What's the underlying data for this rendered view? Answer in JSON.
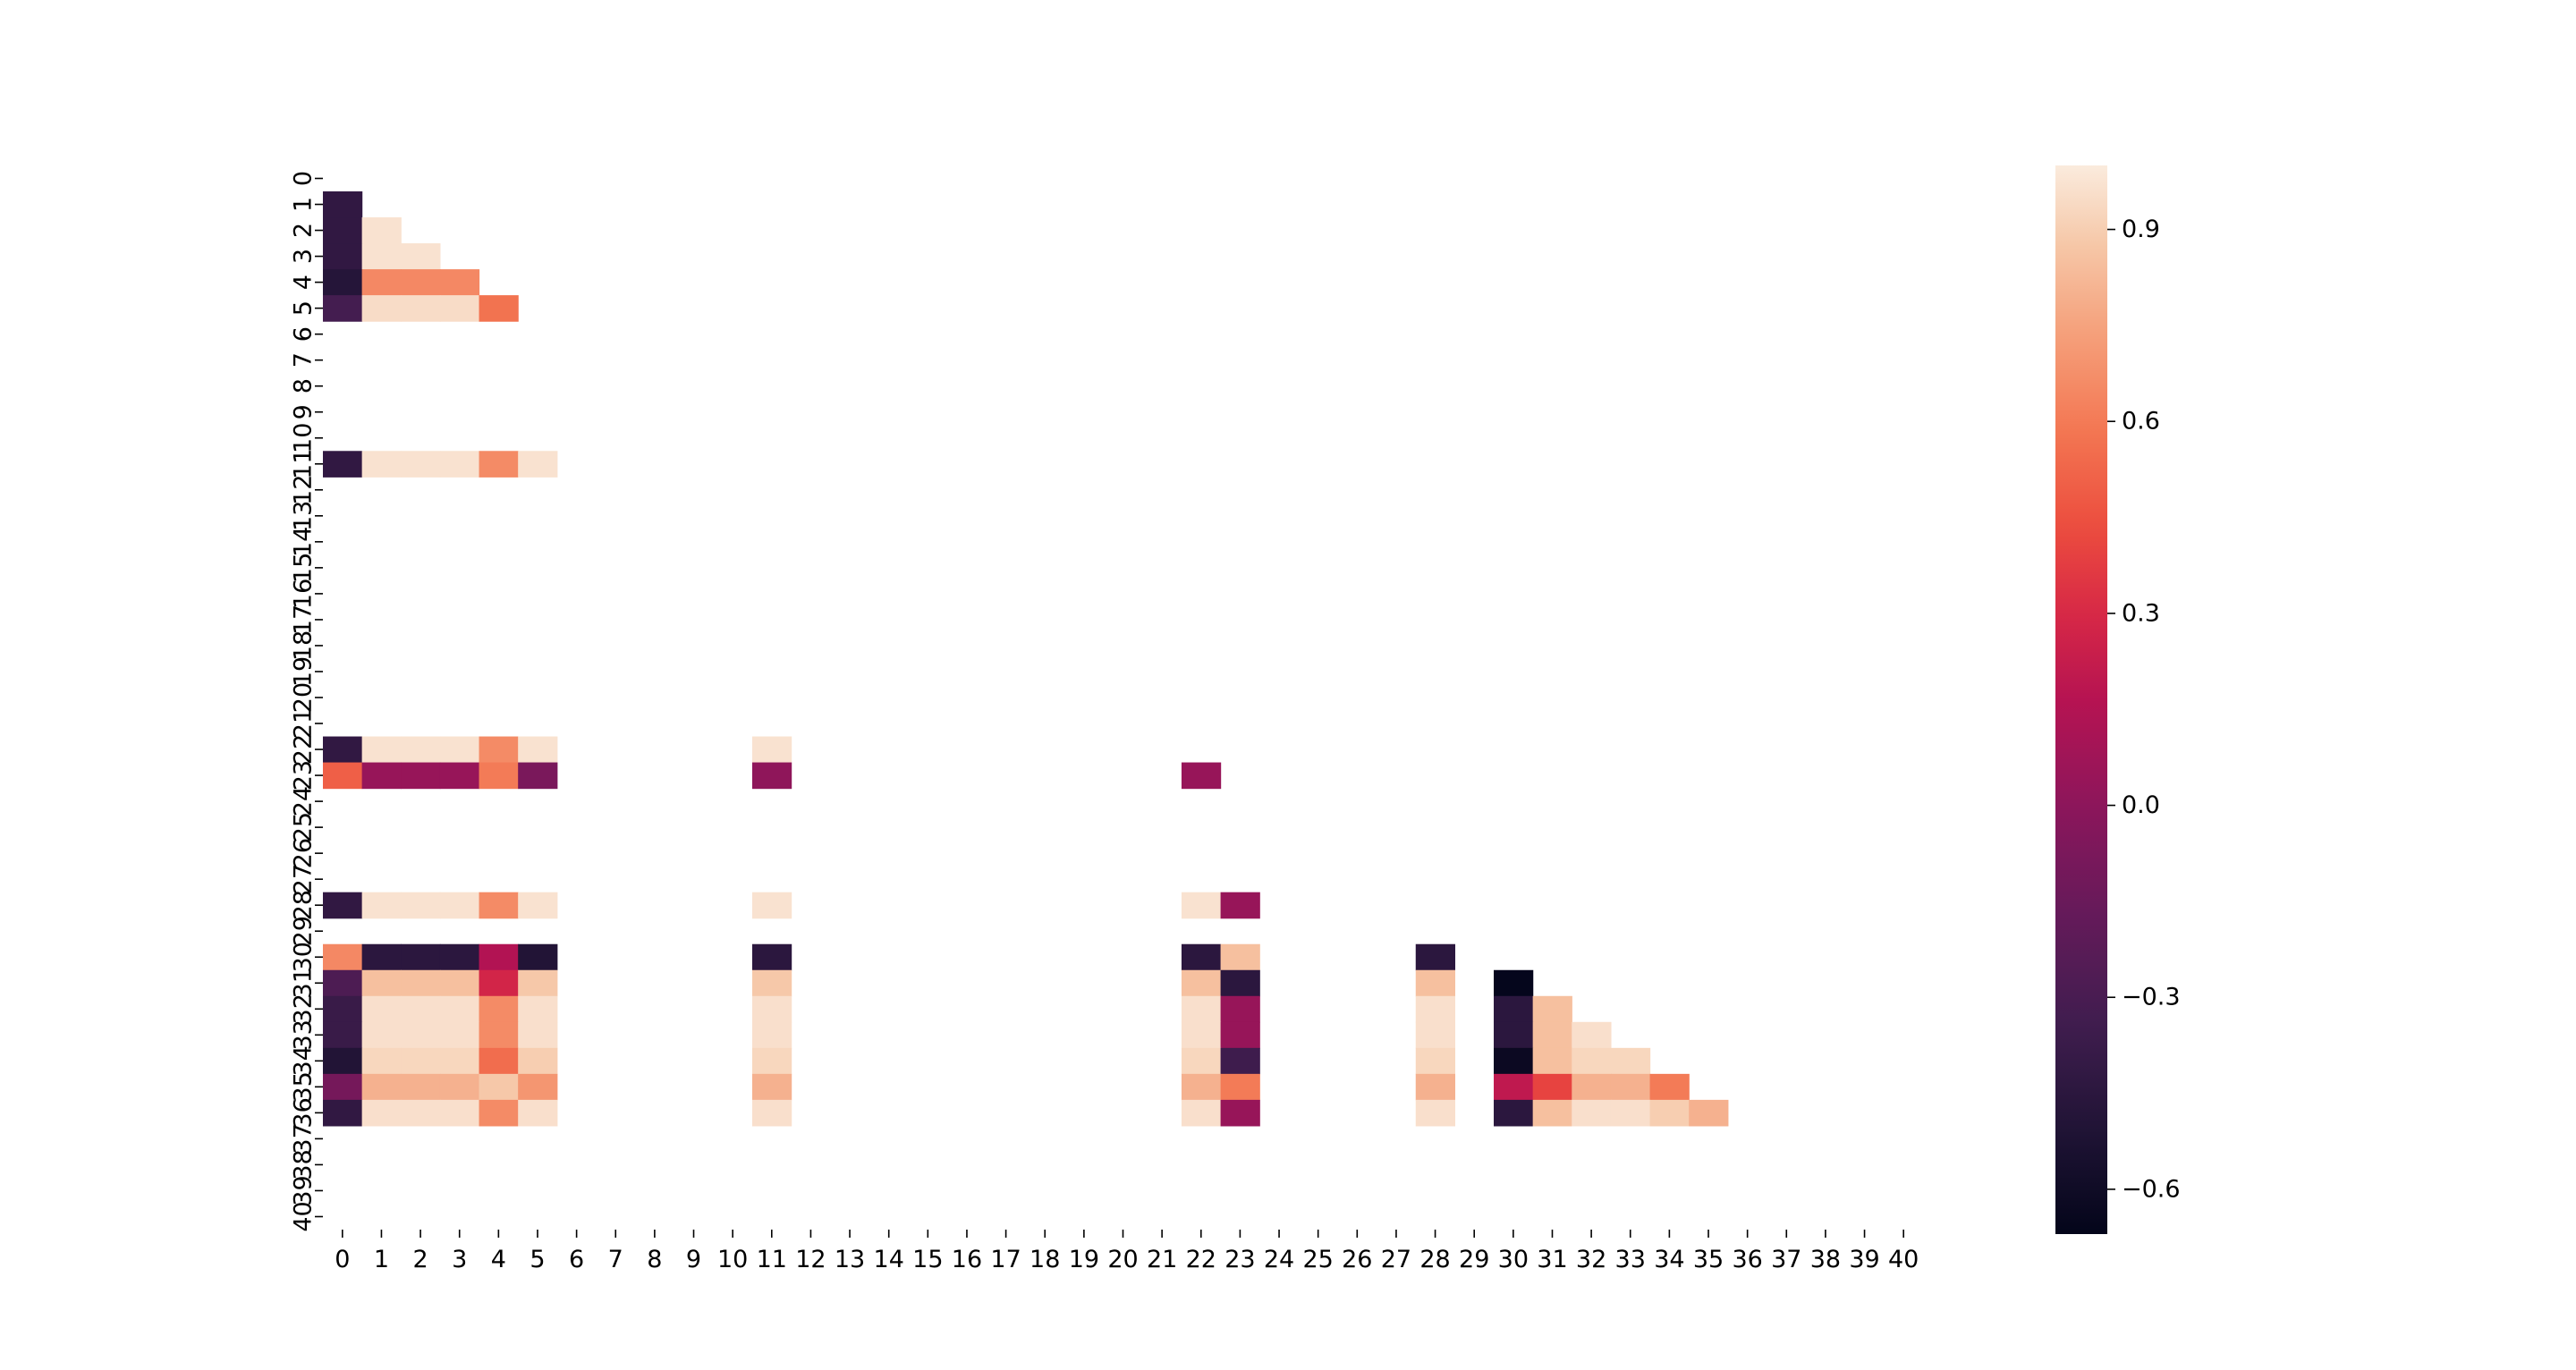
{
  "chart_data": {
    "type": "heatmap",
    "title": "",
    "xlabel": "",
    "ylabel": "",
    "x_tick_labels": [
      "0",
      "1",
      "2",
      "3",
      "4",
      "5",
      "6",
      "7",
      "8",
      "9",
      "10",
      "11",
      "12",
      "13",
      "14",
      "15",
      "16",
      "17",
      "18",
      "19",
      "20",
      "21",
      "22",
      "23",
      "24",
      "25",
      "26",
      "27",
      "28",
      "29",
      "30",
      "31",
      "32",
      "33",
      "34",
      "35",
      "36",
      "37",
      "38",
      "39",
      "40"
    ],
    "y_tick_labels": [
      "0",
      "1",
      "2",
      "3",
      "4",
      "5",
      "6",
      "7",
      "8",
      "9",
      "10",
      "11",
      "12",
      "13",
      "14",
      "15",
      "16",
      "17",
      "18",
      "19",
      "20",
      "21",
      "22",
      "23",
      "24",
      "25",
      "26",
      "27",
      "28",
      "29",
      "30",
      "31",
      "32",
      "33",
      "34",
      "35",
      "36",
      "37",
      "38",
      "39",
      "40"
    ],
    "colormap": "rocket",
    "vmin": -0.67,
    "vmax": 1.0,
    "colorbar_ticks": [
      0.9,
      0.6,
      0.3,
      0.0,
      -0.3,
      -0.6
    ],
    "colorbar_tick_labels": [
      "0.9",
      "0.6",
      "0.3",
      "0.0",
      "−0.3",
      "−0.6"
    ],
    "masked": "upper triangle and rows/columns with no data are blank",
    "cells": [
      {
        "row": 1,
        "col": 0,
        "value": -0.42
      },
      {
        "row": 2,
        "col": 0,
        "value": -0.42
      },
      {
        "row": 2,
        "col": 1,
        "value": 0.97
      },
      {
        "row": 3,
        "col": 0,
        "value": -0.42
      },
      {
        "row": 3,
        "col": 1,
        "value": 0.97
      },
      {
        "row": 3,
        "col": 2,
        "value": 0.97
      },
      {
        "row": 4,
        "col": 0,
        "value": -0.48
      },
      {
        "row": 4,
        "col": 1,
        "value": 0.65
      },
      {
        "row": 4,
        "col": 2,
        "value": 0.65
      },
      {
        "row": 4,
        "col": 3,
        "value": 0.65
      },
      {
        "row": 5,
        "col": 0,
        "value": -0.32
      },
      {
        "row": 5,
        "col": 1,
        "value": 0.95
      },
      {
        "row": 5,
        "col": 2,
        "value": 0.95
      },
      {
        "row": 5,
        "col": 3,
        "value": 0.95
      },
      {
        "row": 5,
        "col": 4,
        "value": 0.57
      },
      {
        "row": 11,
        "col": 0,
        "value": -0.42
      },
      {
        "row": 11,
        "col": 1,
        "value": 0.97
      },
      {
        "row": 11,
        "col": 2,
        "value": 0.97
      },
      {
        "row": 11,
        "col": 3,
        "value": 0.97
      },
      {
        "row": 11,
        "col": 4,
        "value": 0.66
      },
      {
        "row": 11,
        "col": 5,
        "value": 0.97
      },
      {
        "row": 22,
        "col": 0,
        "value": -0.42
      },
      {
        "row": 22,
        "col": 1,
        "value": 0.97
      },
      {
        "row": 22,
        "col": 2,
        "value": 0.97
      },
      {
        "row": 22,
        "col": 3,
        "value": 0.97
      },
      {
        "row": 22,
        "col": 4,
        "value": 0.66
      },
      {
        "row": 22,
        "col": 5,
        "value": 0.97
      },
      {
        "row": 22,
        "col": 11,
        "value": 0.97
      },
      {
        "row": 23,
        "col": 0,
        "value": 0.5
      },
      {
        "row": 23,
        "col": 1,
        "value": 0.04
      },
      {
        "row": 23,
        "col": 2,
        "value": 0.04
      },
      {
        "row": 23,
        "col": 3,
        "value": 0.04
      },
      {
        "row": 23,
        "col": 4,
        "value": 0.6
      },
      {
        "row": 23,
        "col": 5,
        "value": -0.08
      },
      {
        "row": 23,
        "col": 11,
        "value": 0.01
      },
      {
        "row": 23,
        "col": 22,
        "value": 0.04
      },
      {
        "row": 28,
        "col": 0,
        "value": -0.42
      },
      {
        "row": 28,
        "col": 1,
        "value": 0.97
      },
      {
        "row": 28,
        "col": 2,
        "value": 0.97
      },
      {
        "row": 28,
        "col": 3,
        "value": 0.97
      },
      {
        "row": 28,
        "col": 4,
        "value": 0.66
      },
      {
        "row": 28,
        "col": 5,
        "value": 0.97
      },
      {
        "row": 28,
        "col": 11,
        "value": 0.97
      },
      {
        "row": 28,
        "col": 22,
        "value": 0.97
      },
      {
        "row": 28,
        "col": 23,
        "value": 0.04
      },
      {
        "row": 30,
        "col": 0,
        "value": 0.65
      },
      {
        "row": 30,
        "col": 1,
        "value": -0.45
      },
      {
        "row": 30,
        "col": 2,
        "value": -0.45
      },
      {
        "row": 30,
        "col": 3,
        "value": -0.45
      },
      {
        "row": 30,
        "col": 4,
        "value": 0.15
      },
      {
        "row": 30,
        "col": 5,
        "value": -0.5
      },
      {
        "row": 30,
        "col": 11,
        "value": -0.45
      },
      {
        "row": 30,
        "col": 22,
        "value": -0.45
      },
      {
        "row": 30,
        "col": 23,
        "value": 0.85
      },
      {
        "row": 30,
        "col": 28,
        "value": -0.45
      },
      {
        "row": 31,
        "col": 0,
        "value": -0.28
      },
      {
        "row": 31,
        "col": 1,
        "value": 0.85
      },
      {
        "row": 31,
        "col": 2,
        "value": 0.85
      },
      {
        "row": 31,
        "col": 3,
        "value": 0.85
      },
      {
        "row": 31,
        "col": 4,
        "value": 0.28
      },
      {
        "row": 31,
        "col": 5,
        "value": 0.88
      },
      {
        "row": 31,
        "col": 11,
        "value": 0.88
      },
      {
        "row": 31,
        "col": 22,
        "value": 0.85
      },
      {
        "row": 31,
        "col": 23,
        "value": -0.45
      },
      {
        "row": 31,
        "col": 28,
        "value": 0.85
      },
      {
        "row": 31,
        "col": 30,
        "value": -0.66
      },
      {
        "row": 32,
        "col": 0,
        "value": -0.38
      },
      {
        "row": 32,
        "col": 1,
        "value": 0.96
      },
      {
        "row": 32,
        "col": 2,
        "value": 0.96
      },
      {
        "row": 32,
        "col": 3,
        "value": 0.96
      },
      {
        "row": 32,
        "col": 4,
        "value": 0.66
      },
      {
        "row": 32,
        "col": 5,
        "value": 0.96
      },
      {
        "row": 32,
        "col": 11,
        "value": 0.96
      },
      {
        "row": 32,
        "col": 22,
        "value": 0.96
      },
      {
        "row": 32,
        "col": 23,
        "value": 0.04
      },
      {
        "row": 32,
        "col": 28,
        "value": 0.96
      },
      {
        "row": 32,
        "col": 30,
        "value": -0.45
      },
      {
        "row": 32,
        "col": 31,
        "value": 0.85
      },
      {
        "row": 33,
        "col": 0,
        "value": -0.38
      },
      {
        "row": 33,
        "col": 1,
        "value": 0.96
      },
      {
        "row": 33,
        "col": 2,
        "value": 0.96
      },
      {
        "row": 33,
        "col": 3,
        "value": 0.96
      },
      {
        "row": 33,
        "col": 4,
        "value": 0.66
      },
      {
        "row": 33,
        "col": 5,
        "value": 0.96
      },
      {
        "row": 33,
        "col": 11,
        "value": 0.96
      },
      {
        "row": 33,
        "col": 22,
        "value": 0.96
      },
      {
        "row": 33,
        "col": 23,
        "value": 0.04
      },
      {
        "row": 33,
        "col": 28,
        "value": 0.96
      },
      {
        "row": 33,
        "col": 30,
        "value": -0.45
      },
      {
        "row": 33,
        "col": 31,
        "value": 0.85
      },
      {
        "row": 33,
        "col": 32,
        "value": 0.96
      },
      {
        "row": 34,
        "col": 0,
        "value": -0.5
      },
      {
        "row": 34,
        "col": 1,
        "value": 0.93
      },
      {
        "row": 34,
        "col": 2,
        "value": 0.93
      },
      {
        "row": 34,
        "col": 3,
        "value": 0.93
      },
      {
        "row": 34,
        "col": 4,
        "value": 0.55
      },
      {
        "row": 34,
        "col": 5,
        "value": 0.9
      },
      {
        "row": 34,
        "col": 11,
        "value": 0.93
      },
      {
        "row": 34,
        "col": 22,
        "value": 0.93
      },
      {
        "row": 34,
        "col": 23,
        "value": -0.35
      },
      {
        "row": 34,
        "col": 28,
        "value": 0.93
      },
      {
        "row": 34,
        "col": 30,
        "value": -0.62
      },
      {
        "row": 34,
        "col": 31,
        "value": 0.85
      },
      {
        "row": 34,
        "col": 32,
        "value": 0.93
      },
      {
        "row": 34,
        "col": 33,
        "value": 0.93
      },
      {
        "row": 35,
        "col": 0,
        "value": -0.1
      },
      {
        "row": 35,
        "col": 1,
        "value": 0.8
      },
      {
        "row": 35,
        "col": 2,
        "value": 0.8
      },
      {
        "row": 35,
        "col": 3,
        "value": 0.8
      },
      {
        "row": 35,
        "col": 4,
        "value": 0.88
      },
      {
        "row": 35,
        "col": 5,
        "value": 0.7
      },
      {
        "row": 35,
        "col": 11,
        "value": 0.8
      },
      {
        "row": 35,
        "col": 22,
        "value": 0.8
      },
      {
        "row": 35,
        "col": 23,
        "value": 0.6
      },
      {
        "row": 35,
        "col": 28,
        "value": 0.8
      },
      {
        "row": 35,
        "col": 30,
        "value": 0.2
      },
      {
        "row": 35,
        "col": 31,
        "value": 0.4
      },
      {
        "row": 35,
        "col": 32,
        "value": 0.8
      },
      {
        "row": 35,
        "col": 33,
        "value": 0.8
      },
      {
        "row": 35,
        "col": 34,
        "value": 0.6
      },
      {
        "row": 36,
        "col": 0,
        "value": -0.42
      },
      {
        "row": 36,
        "col": 1,
        "value": 0.96
      },
      {
        "row": 36,
        "col": 2,
        "value": 0.96
      },
      {
        "row": 36,
        "col": 3,
        "value": 0.96
      },
      {
        "row": 36,
        "col": 4,
        "value": 0.66
      },
      {
        "row": 36,
        "col": 5,
        "value": 0.96
      },
      {
        "row": 36,
        "col": 11,
        "value": 0.96
      },
      {
        "row": 36,
        "col": 22,
        "value": 0.96
      },
      {
        "row": 36,
        "col": 23,
        "value": 0.04
      },
      {
        "row": 36,
        "col": 28,
        "value": 0.96
      },
      {
        "row": 36,
        "col": 30,
        "value": -0.45
      },
      {
        "row": 36,
        "col": 31,
        "value": 0.85
      },
      {
        "row": 36,
        "col": 32,
        "value": 0.96
      },
      {
        "row": 36,
        "col": 33,
        "value": 0.96
      },
      {
        "row": 36,
        "col": 34,
        "value": 0.9
      },
      {
        "row": 36,
        "col": 35,
        "value": 0.8
      }
    ]
  }
}
